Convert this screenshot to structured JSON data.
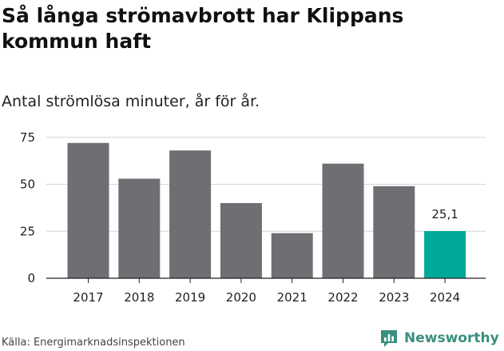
{
  "title": "Så långa strömavbrott har Klippans kommun haft",
  "subtitle": "Antal strömlösa minuter, år för år.",
  "source": "Källa: Energimarknadsinspektionen",
  "brand": {
    "name": "Newsworthy",
    "icon": "newsworthy-logo-icon",
    "color": "#3a8f7f"
  },
  "colors": {
    "bar": "#6f6e73",
    "highlight": "#00a99a",
    "grid": "#d6d6d6",
    "axis": "#222222"
  },
  "chart_data": {
    "type": "bar",
    "categories": [
      "2017",
      "2018",
      "2019",
      "2020",
      "2021",
      "2022",
      "2023",
      "2024"
    ],
    "values": [
      72,
      53,
      68,
      40,
      24,
      61,
      49,
      25.1
    ],
    "highlight_index": 7,
    "data_labels": [
      {
        "index": 7,
        "text": "25,1"
      }
    ],
    "yticks": [
      0,
      25,
      50,
      75
    ],
    "ylim": [
      0,
      80
    ],
    "grid": true,
    "xlabel": "",
    "ylabel": ""
  }
}
